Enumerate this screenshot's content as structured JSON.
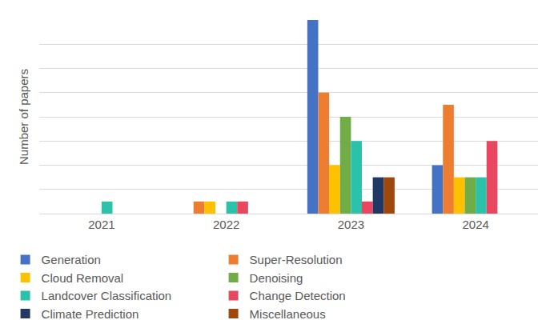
{
  "chart_data": {
    "type": "bar",
    "y_label": "Number of papers",
    "categories": [
      "2021",
      "2022",
      "2023",
      "2024"
    ],
    "series": [
      {
        "name": "Generation",
        "color": "#4472c4",
        "values": [
          0,
          0,
          16,
          4
        ]
      },
      {
        "name": "Super-Resolution",
        "color": "#ed7d31",
        "values": [
          0,
          1,
          10,
          9
        ]
      },
      {
        "name": "Cloud Removal",
        "color": "#ffc000",
        "values": [
          0,
          1,
          4,
          3
        ]
      },
      {
        "name": "Denoising",
        "color": "#70ad47",
        "values": [
          0,
          0,
          8,
          3
        ]
      },
      {
        "name": "Landcover Classification",
        "color": "#2cc1a9",
        "values": [
          1,
          1,
          6,
          3
        ]
      },
      {
        "name": "Change Detection",
        "color": "#e8475f",
        "values": [
          0,
          1,
          1,
          6
        ]
      },
      {
        "name": "Climate Prediction",
        "color": "#203864",
        "values": [
          0,
          0,
          3,
          0
        ]
      },
      {
        "name": "Miscellaneous",
        "color": "#9e480e",
        "values": [
          0,
          0,
          3,
          0
        ]
      }
    ],
    "ylim": [
      0,
      16
    ],
    "yticks": [
      0,
      2,
      4,
      6,
      8,
      10,
      12,
      14,
      16
    ],
    "grid": true,
    "legend": "bottom",
    "tick_labels": "x"
  }
}
